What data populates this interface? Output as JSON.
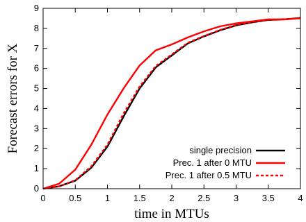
{
  "chart_data": {
    "type": "line",
    "title": "",
    "xlabel": "time in MTUs",
    "ylabel": "Forecast errors for X",
    "xlim": [
      0,
      4
    ],
    "ylim": [
      0,
      9
    ],
    "x_ticks": [
      "0",
      "0.5",
      "1",
      "1.5",
      "2",
      "2.5",
      "3",
      "3.5",
      "4"
    ],
    "y_ticks": [
      "0",
      "1",
      "2",
      "3",
      "4",
      "5",
      "6",
      "7",
      "8",
      "9"
    ],
    "grid": false,
    "legend_position": "bottom-right",
    "series": [
      {
        "name": "single precision",
        "color": "#000000",
        "style": "solid",
        "points": [
          [
            0,
            0.0
          ],
          [
            0.25,
            0.12
          ],
          [
            0.5,
            0.4
          ],
          [
            0.75,
            1.05
          ],
          [
            1.0,
            2.1
          ],
          [
            1.25,
            3.6
          ],
          [
            1.5,
            5.0
          ],
          [
            1.75,
            6.05
          ],
          [
            2.0,
            6.65
          ],
          [
            2.25,
            7.25
          ],
          [
            2.5,
            7.6
          ],
          [
            2.75,
            7.9
          ],
          [
            3.0,
            8.15
          ],
          [
            3.25,
            8.3
          ],
          [
            3.5,
            8.42
          ],
          [
            3.75,
            8.45
          ],
          [
            4.0,
            8.52
          ]
        ]
      },
      {
        "name": "Prec. 1 after 0 MTU",
        "color": "#ff0000",
        "style": "solid",
        "points": [
          [
            0,
            0.0
          ],
          [
            0.25,
            0.25
          ],
          [
            0.5,
            0.95
          ],
          [
            0.75,
            2.2
          ],
          [
            1.0,
            3.7
          ],
          [
            1.25,
            5.0
          ],
          [
            1.5,
            6.15
          ],
          [
            1.75,
            6.9
          ],
          [
            2.0,
            7.2
          ],
          [
            2.25,
            7.55
          ],
          [
            2.5,
            7.85
          ],
          [
            2.75,
            8.1
          ],
          [
            3.0,
            8.25
          ],
          [
            3.25,
            8.35
          ],
          [
            3.5,
            8.45
          ],
          [
            3.75,
            8.45
          ],
          [
            4.0,
            8.5
          ]
        ]
      },
      {
        "name": "Prec. 1 after 0.5 MTU",
        "color": "#ff0000",
        "style": "dashed",
        "points": [
          [
            0,
            0.0
          ],
          [
            0.25,
            0.12
          ],
          [
            0.5,
            0.42
          ],
          [
            0.75,
            1.12
          ],
          [
            1.0,
            2.2
          ],
          [
            1.25,
            3.75
          ],
          [
            1.5,
            5.1
          ],
          [
            1.75,
            6.12
          ],
          [
            2.0,
            6.7
          ],
          [
            2.25,
            7.28
          ],
          [
            2.5,
            7.62
          ],
          [
            2.75,
            7.92
          ],
          [
            3.0,
            8.17
          ],
          [
            3.25,
            8.32
          ],
          [
            3.5,
            8.43
          ],
          [
            3.75,
            8.46
          ],
          [
            4.0,
            8.52
          ]
        ]
      }
    ]
  }
}
